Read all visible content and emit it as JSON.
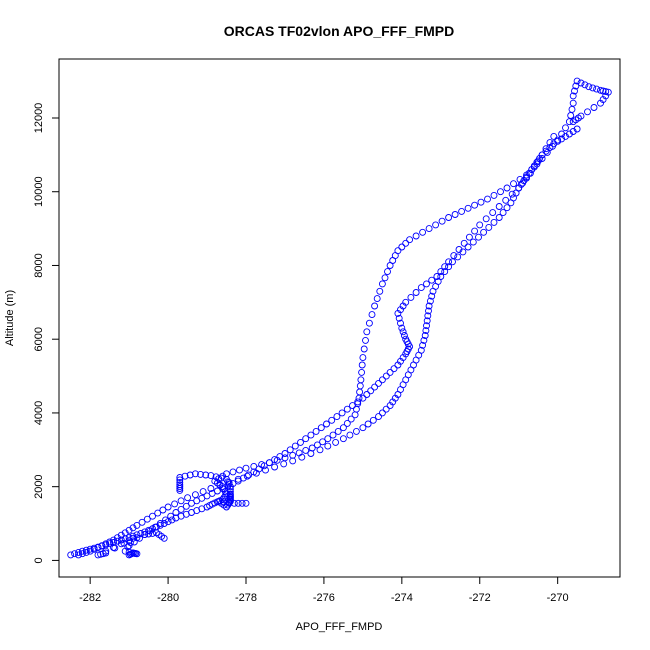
{
  "chart_data": {
    "type": "scatter",
    "title": "ORCAS TF02vlon APO_FFF_FMPD",
    "xlabel": "APO_FFF_FMPD",
    "ylabel": "Altitude (m)",
    "xlim": [
      -282.8,
      -268.4
    ],
    "ylim": [
      -450,
      13600
    ],
    "xticks": [
      -282,
      -280,
      -278,
      -276,
      -274,
      -272,
      -270
    ],
    "yticks": [
      0,
      2000,
      4000,
      6000,
      8000,
      10000,
      12000
    ],
    "marker": "open-circle",
    "color": "#0000ff",
    "grid": false,
    "series": [
      {
        "x": [
          -282.5,
          -282.2,
          -281.9,
          -281.6,
          -281.3,
          -281.0,
          -280.7,
          -280.4,
          -280.1,
          -279.8,
          -279.4,
          -279.0,
          -278.8,
          -278.6,
          -278.5,
          -278.6,
          -278.8,
          -278.5,
          -278.0,
          -277.4,
          -276.8,
          -276.3,
          -275.9,
          -275.5,
          -275.2,
          -275.1,
          -275.05,
          -275.0,
          -274.9,
          -274.7,
          -274.5,
          -274.3,
          -274.1,
          -273.8,
          -273.3,
          -272.8,
          -272.3,
          -271.8,
          -271.3,
          -270.8,
          -270.4,
          -270.0,
          -269.7,
          -269.6
        ],
        "y": [
          150,
          250,
          330,
          420,
          520,
          620,
          730,
          860,
          1000,
          1150,
          1300,
          1450,
          1560,
          1650,
          1800,
          2000,
          2150,
          2350,
          2500,
          2650,
          2850,
          3050,
          3300,
          3600,
          3950,
          4400,
          4900,
          5500,
          6200,
          6900,
          7500,
          8000,
          8400,
          8700,
          9000,
          9300,
          9550,
          9800,
          10100,
          10450,
          10900,
          11400,
          11900,
          12400
        ]
      },
      {
        "x": [
          -269.6,
          -269.5,
          -269.2,
          -268.9,
          -268.7,
          -268.9,
          -269.4,
          -269.6
        ],
        "y": [
          12600,
          13000,
          12850,
          12750,
          12700,
          12400,
          12050,
          11900
        ]
      },
      {
        "x": [
          -269.5,
          -269.8,
          -270.1,
          -270.4,
          -270.6,
          -270.8,
          -271.0,
          -271.2,
          -271.5,
          -271.9,
          -272.3,
          -272.7,
          -273.0,
          -273.2,
          -273.3,
          -273.35,
          -273.4,
          -273.5,
          -273.7,
          -273.9,
          -274.1,
          -274.3,
          -274.6,
          -275.0,
          -275.5,
          -276.1,
          -276.8,
          -277.5,
          -278.2,
          -278.9,
          -279.5,
          -280.0,
          -280.4,
          -280.8,
          -281.1,
          -281.4,
          -281.7,
          -282.0,
          -282.3
        ],
        "y": [
          11700,
          11500,
          11300,
          11000,
          10700,
          10400,
          10100,
          9700,
          9300,
          8900,
          8500,
          8100,
          7700,
          7300,
          6900,
          6500,
          6100,
          5700,
          5300,
          4900,
          4500,
          4200,
          3900,
          3600,
          3300,
          3000,
          2700,
          2450,
          2200,
          1950,
          1700,
          1450,
          1200,
          950,
          750,
          550,
          400,
          250,
          150
        ]
      },
      {
        "x": [
          -270.1,
          -270.4,
          -270.7,
          -271.0,
          -271.5,
          -272.0,
          -272.4,
          -272.8,
          -273.1,
          -273.5,
          -273.9,
          -274.1,
          -274.0,
          -273.9,
          -273.8,
          -273.9,
          -274.1,
          -274.4,
          -274.7,
          -275.0,
          -275.4,
          -275.8,
          -276.2,
          -276.6,
          -277.0,
          -277.4,
          -277.8,
          -278.2,
          -278.6,
          -279.0,
          -279.4,
          -279.8,
          -280.2,
          -280.6,
          -281.0
        ],
        "y": [
          11500,
          11000,
          10500,
          10100,
          9600,
          9100,
          8600,
          8100,
          7700,
          7400,
          7000,
          6700,
          6300,
          6000,
          5800,
          5600,
          5300,
          5000,
          4700,
          4400,
          4100,
          3800,
          3500,
          3200,
          2900,
          2650,
          2400,
          2150,
          1950,
          1750,
          1550,
          1300,
          1000,
          700,
          400
        ]
      },
      {
        "x": [
          -279.7,
          -279.7,
          -279.7,
          -279.3,
          -278.9,
          -278.5,
          -278.4,
          -278.4,
          -278.4,
          -278.4,
          -278.5,
          -278.7,
          -278.3,
          -278.0
        ],
        "y": [
          1900,
          2050,
          2250,
          2350,
          2300,
          2200,
          2000,
          1800,
          1700,
          1600,
          1450,
          1600,
          1550,
          1550
        ]
      },
      {
        "x": [
          -281.0,
          -280.9,
          -280.8,
          -281.1,
          -280.9,
          -281.6,
          -281.8,
          -281.2,
          -280.6,
          -280.3,
          -280.1
        ],
        "y": [
          150,
          200,
          180,
          250,
          600,
          200,
          150,
          450,
          700,
          750,
          600
        ]
      }
    ]
  }
}
